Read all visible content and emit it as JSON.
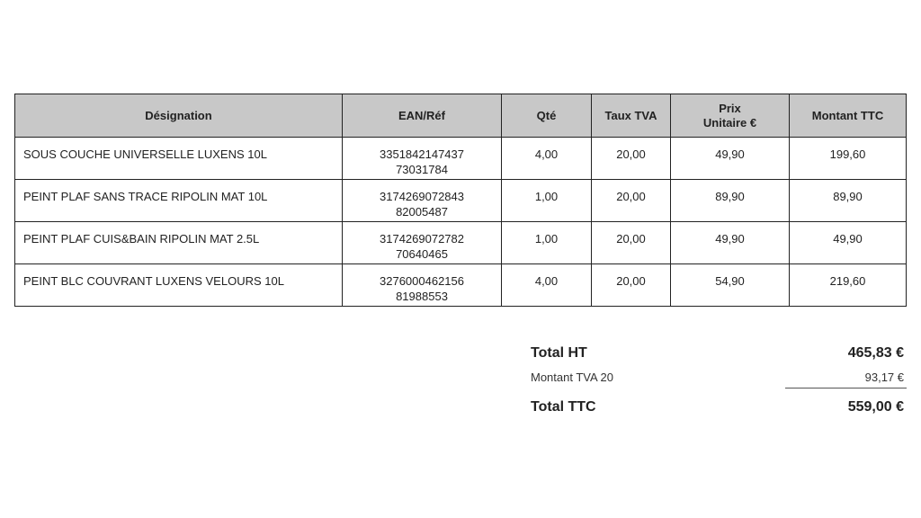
{
  "table": {
    "headers": [
      "Désignation",
      "EAN/Réf",
      "Qté",
      "Taux TVA",
      "Prix\nUnitaire €",
      "Montant TTC"
    ],
    "header_prix_line1": "Prix",
    "header_prix_line2": "Unitaire €",
    "rows": [
      {
        "designation": "SOUS COUCHE UNIVERSELLE LUXENS 10L",
        "ean": "3351842147437",
        "ref": "73031784",
        "qte": "4,00",
        "tva": "20,00",
        "prix": "49,90",
        "montant": "199,60"
      },
      {
        "designation": "PEINT PLAF SANS TRACE RIPOLIN MAT 10L",
        "ean": "3174269072843",
        "ref": "82005487",
        "qte": "1,00",
        "tva": "20,00",
        "prix": "89,90",
        "montant": "89,90"
      },
      {
        "designation": "PEINT PLAF CUIS&BAIN RIPOLIN MAT 2.5L",
        "ean": "3174269072782",
        "ref": "70640465",
        "qte": "1,00",
        "tva": "20,00",
        "prix": "49,90",
        "montant": "49,90"
      },
      {
        "designation": "PEINT BLC COUVRANT LUXENS VELOURS 10L",
        "ean": "3276000462156",
        "ref": "81988553",
        "qte": "4,00",
        "tva": "20,00",
        "prix": "54,90",
        "montant": "219,60"
      }
    ]
  },
  "totals": {
    "total_ht_label": "Total HT",
    "total_ht": "465,83 €",
    "tva_label": "Montant TVA 20",
    "tva": "93,17 €",
    "total_ttc_label": "Total TTC",
    "total_ttc": "559,00 €"
  },
  "colors": {
    "header_bg": "#c8c8c8"
  }
}
